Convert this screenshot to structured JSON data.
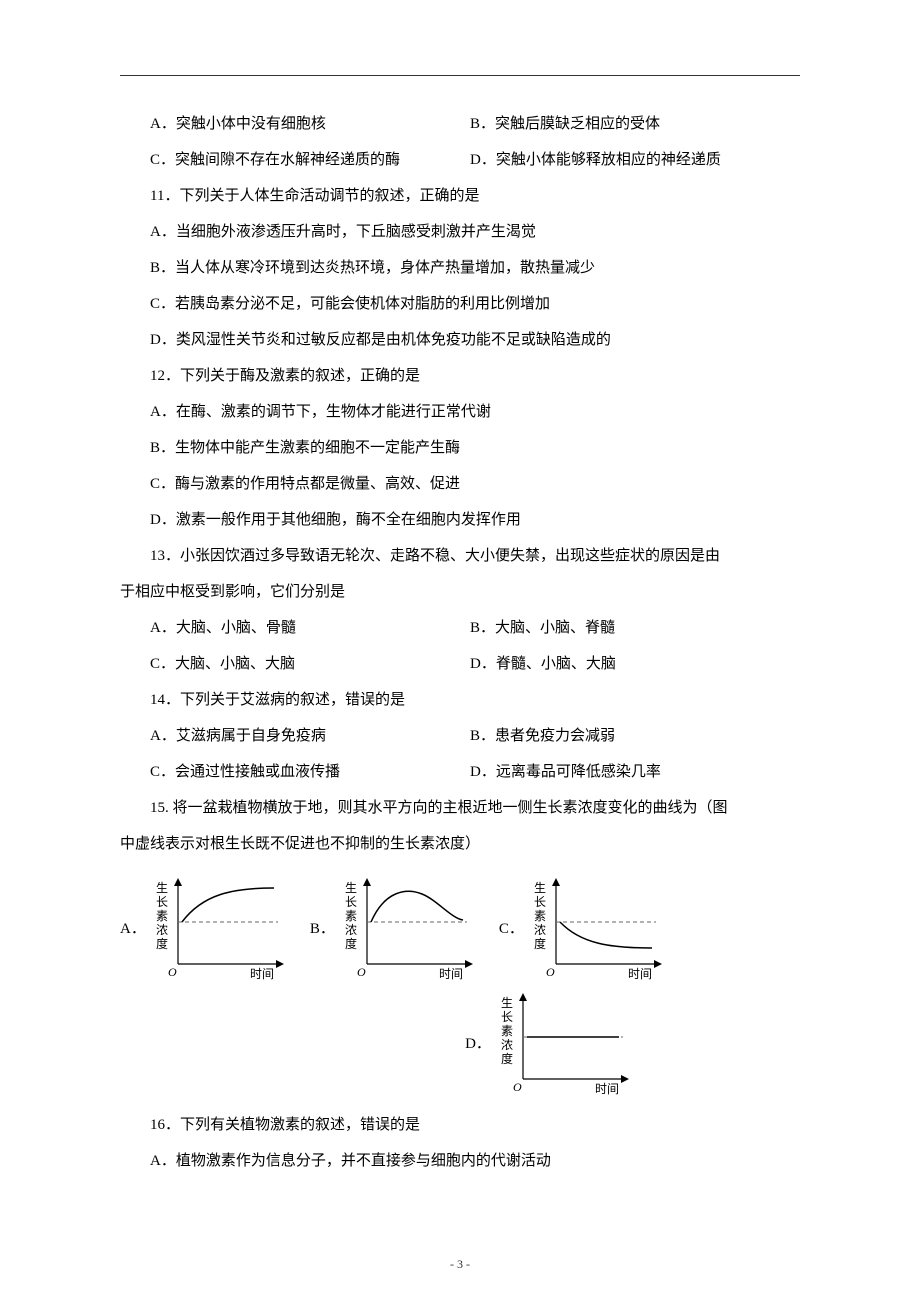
{
  "options_row1": {
    "a": "A．突触小体中没有细胞核",
    "b": "B．突触后膜缺乏相应的受体"
  },
  "options_row2": {
    "c": "C．突触间隙不存在水解神经递质的酶",
    "d": "D．突触小体能够释放相应的神经递质"
  },
  "q11": {
    "stem": "11．下列关于人体生命活动调节的叙述，正确的是",
    "a": "A．当细胞外液渗透压升高时，下丘脑感受刺激并产生渴觉",
    "b": "B．当人体从寒冷环境到达炎热环境，身体产热量增加，散热量减少",
    "c": "C．若胰岛素分泌不足，可能会使机体对脂肪的利用比例增加",
    "d": "D．类风湿性关节炎和过敏反应都是由机体免疫功能不足或缺陷造成的"
  },
  "q12": {
    "stem": "12．下列关于酶及激素的叙述，正确的是",
    "a": "A．在酶、激素的调节下，生物体才能进行正常代谢",
    "b": "B．生物体中能产生激素的细胞不一定能产生酶",
    "c": "C．酶与激素的作用特点都是微量、高效、促进",
    "d": "D．激素一般作用于其他细胞，酶不全在细胞内发挥作用"
  },
  "q13": {
    "stem1": "13．小张因饮酒过多导致语无轮次、走路不稳、大小便失禁，出现这些症状的原因是由",
    "stem2": "于相应中枢受到影响，它们分别是",
    "row1a": "A．大脑、小脑、骨髓",
    "row1b": "B．大脑、小脑、脊髓",
    "row2c": "C．大脑、小脑、大脑",
    "row2d": "D．脊髓、小脑、大脑"
  },
  "q14": {
    "stem": "14．下列关于艾滋病的叙述，错误的是",
    "row1a": "A．艾滋病属于自身免疫病",
    "row1b": "B．患者免疫力会减弱",
    "row2c": "C．会通过性接触或血液传播",
    "row2d": "D．远离毒品可降低感染几率"
  },
  "q15": {
    "stem1": "15. 将一盆栽植物横放于地，则其水平方向的主根近地一侧生长素浓度变化的曲线为（图",
    "stem2": "中虚线表示对根生长既不促进也不抑制的生长素浓度）"
  },
  "q16": {
    "stem": "16．下列有关植物激素的叙述，错误的是",
    "a": "A．植物激素作为信息分子，并不直接参与细胞内的代谢活动"
  },
  "charts": {
    "width": 140,
    "height": 110,
    "axis_color": "#000000",
    "dash_color": "#666666",
    "curve_color": "#000000",
    "ylabel_chars": [
      "生",
      "长",
      "素",
      "浓",
      "度"
    ],
    "xlabel": "时间",
    "origin_label": "O",
    "label_fontsize": 12,
    "a_label": "A．",
    "b_label": "B．",
    "c_label": "C．",
    "d_label": "D．",
    "variants": {
      "A": {
        "curve_type": "rise_above"
      },
      "B": {
        "curve_type": "overshoot_return"
      },
      "C": {
        "curve_type": "fall_below"
      },
      "D": {
        "curve_type": "flat_on_dash"
      }
    }
  },
  "footer": "- 3 -"
}
